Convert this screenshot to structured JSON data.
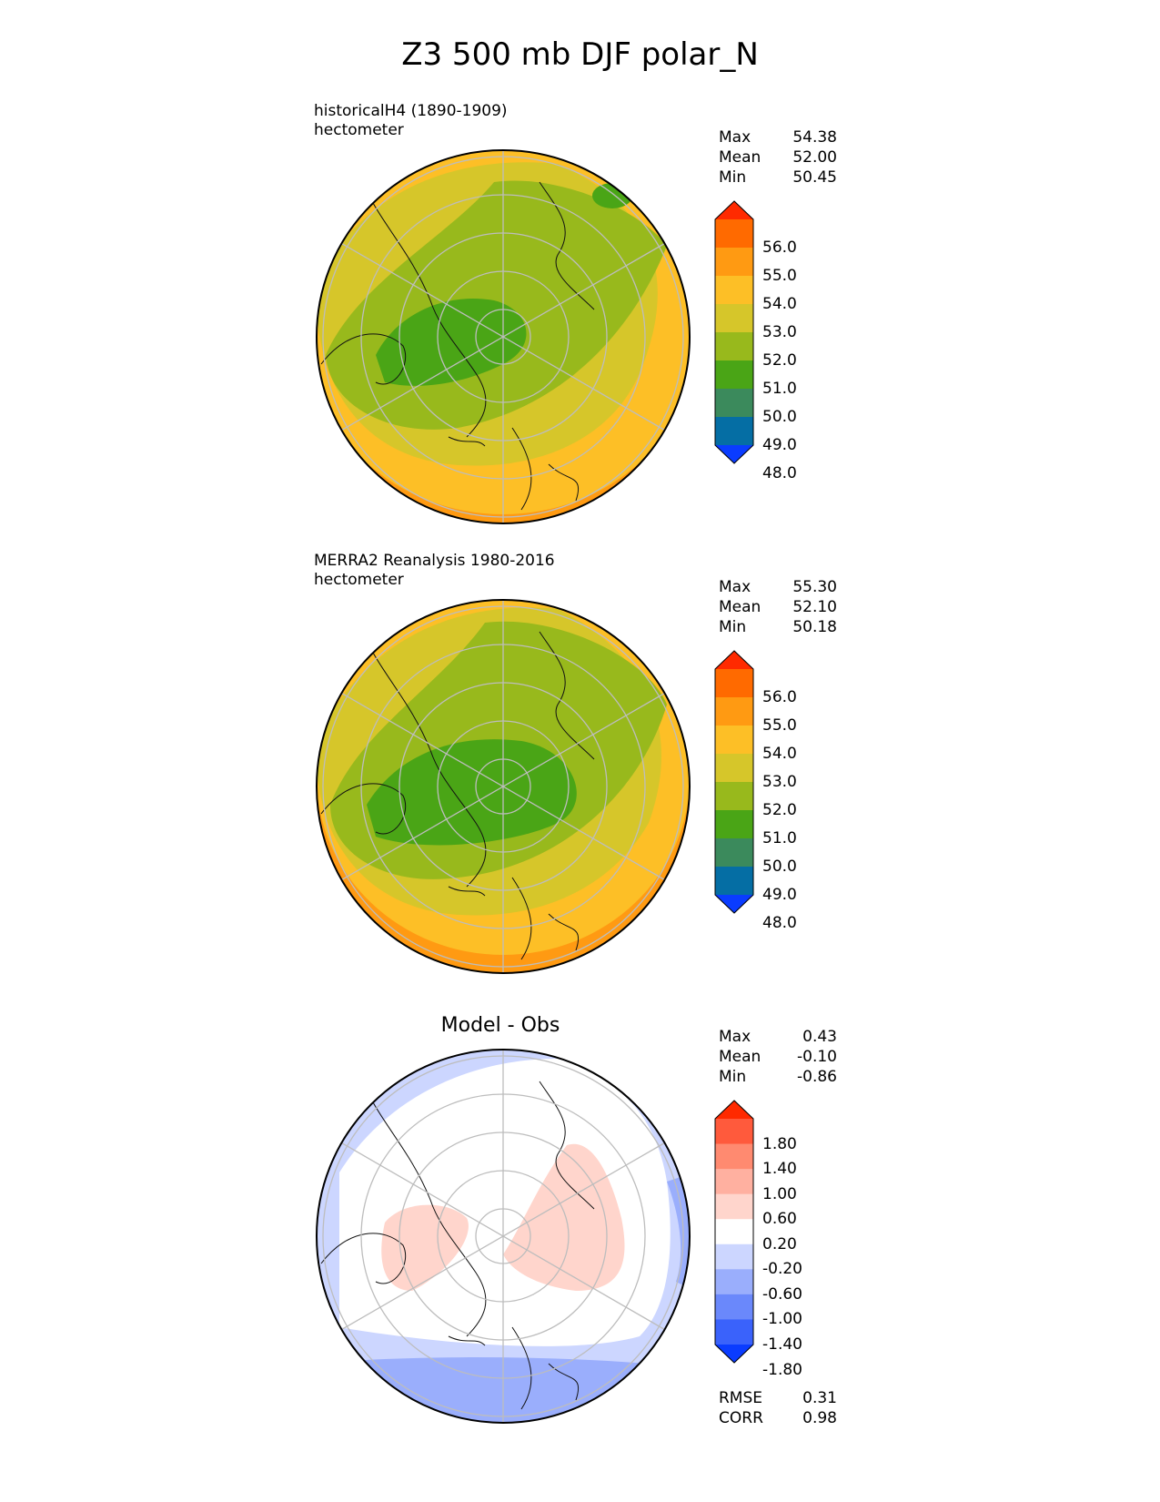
{
  "title": "Z3 500 mb DJF polar_N",
  "panels": [
    {
      "label_line1": "historicalH4 (1890-1909)",
      "label_line2": "hectometer",
      "stats": [
        {
          "label": "Max",
          "value": "54.38"
        },
        {
          "label": "Mean",
          "value": "52.00"
        },
        {
          "label": "Min",
          "value": "50.45"
        }
      ],
      "colorbar_labels": [
        "56.0",
        "55.0",
        "54.0",
        "53.0",
        "52.0",
        "51.0",
        "50.0",
        "49.0",
        "48.0"
      ],
      "colorbar_colors": [
        "#ff2a00",
        "#ff6a00",
        "#ff9a12",
        "#fdbf26",
        "#d6c62a",
        "#98b91c",
        "#4aa516",
        "#3b8a5c",
        "#056ea4",
        "#0a3cff"
      ],
      "colors": {
        "pole": "#4aa516",
        "inner": "#98b91c",
        "mid": "#d6c62a",
        "outer": "#fdbf26",
        "edge": "#ff9a12"
      }
    },
    {
      "label_line1": "MERRA2 Reanalysis 1980-2016",
      "label_line2": "hectometer",
      "stats": [
        {
          "label": "Max",
          "value": "55.30"
        },
        {
          "label": "Mean",
          "value": "52.10"
        },
        {
          "label": "Min",
          "value": "50.18"
        }
      ],
      "colorbar_labels": [
        "56.0",
        "55.0",
        "54.0",
        "53.0",
        "52.0",
        "51.0",
        "50.0",
        "49.0",
        "48.0"
      ],
      "colorbar_colors": [
        "#ff2a00",
        "#ff6a00",
        "#ff9a12",
        "#fdbf26",
        "#d6c62a",
        "#98b91c",
        "#4aa516",
        "#3b8a5c",
        "#056ea4",
        "#0a3cff"
      ],
      "colors": {
        "pole": "#4aa516",
        "inner": "#98b91c",
        "mid": "#d6c62a",
        "outer": "#fdbf26",
        "edge": "#ff9a12"
      }
    },
    {
      "title": "Model - Obs",
      "stats": [
        {
          "label": "Max",
          "value": "0.43"
        },
        {
          "label": "Mean",
          "value": "-0.10"
        },
        {
          "label": "Min",
          "value": "-0.86"
        }
      ],
      "colorbar_labels": [
        "1.80",
        "1.40",
        "1.00",
        "0.60",
        "0.20",
        "-0.20",
        "-0.60",
        "-1.00",
        "-1.40",
        "-1.80"
      ],
      "colorbar_colors": [
        "#ff2a00",
        "#ff5a3c",
        "#ff8a70",
        "#ffb0a0",
        "#ffd5cc",
        "#ffffff",
        "#ccd6ff",
        "#9aaefc",
        "#6a88fb",
        "#3a62fb",
        "#0a3cff"
      ],
      "extra_stats": [
        {
          "label": "RMSE",
          "value": "0.31"
        },
        {
          "label": "CORR",
          "value": "0.98"
        }
      ],
      "colors": {
        "neg": "#ccd6ff",
        "neg2": "#9aaefc",
        "pos": "#ffd5cc"
      }
    }
  ]
}
